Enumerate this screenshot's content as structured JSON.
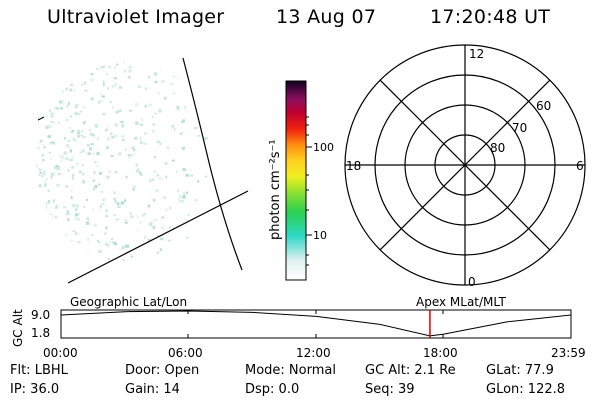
{
  "header": {
    "title": "Ultraviolet Imager",
    "date": "13 Aug 07",
    "time": "17:20:48 UT"
  },
  "colorbar": {
    "label": "photon cm⁻²s⁻¹",
    "ticks": [
      "100",
      "10"
    ]
  },
  "polar_plot": {
    "mlt_labels": [
      "12",
      "18",
      "6",
      "0"
    ],
    "lat_labels": [
      "60",
      "70",
      "80"
    ]
  },
  "timeline": {
    "left_label": "Geographic Lat/Lon",
    "right_label": "Apex MLat/MLT",
    "axis_title": "GC Alt",
    "y_ticks": [
      "9.0",
      "1.8"
    ],
    "x_ticks": [
      "00:00",
      "06:00",
      "12:00",
      "18:00",
      "23:59"
    ],
    "current_time_color": "#dd0000"
  },
  "info": {
    "flt": "Flt: LBHL",
    "ip": "IP: 36.0",
    "door": "Door: Open",
    "gain": "Gain: 14",
    "mode": "Mode: Normal",
    "dsp": "Dsp:     0.0",
    "gcalt": "GC Alt: 2.1 Re",
    "seq": "Seq: 39",
    "glat": "GLat: 77.9",
    "glon": "GLon: 122.8"
  },
  "chart_data": {
    "type": "line",
    "title": "",
    "xlabel": "",
    "ylabel": "GC Alt",
    "x": [
      "00:00",
      "03:00",
      "06:00",
      "09:00",
      "12:00",
      "15:00",
      "17:21",
      "18:00",
      "21:00",
      "23:59"
    ],
    "series": [
      {
        "values": [
          7.9,
          8.8,
          9.0,
          8.6,
          7.5,
          5.3,
          2.1,
          2.6,
          6.0,
          7.9
        ]
      }
    ],
    "ylim": [
      1.8,
      9.0
    ],
    "grid": false
  }
}
